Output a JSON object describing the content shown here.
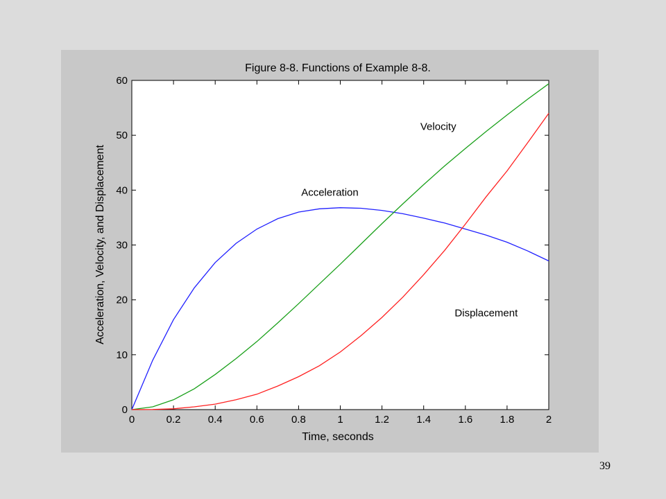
{
  "slide": {
    "number": "39"
  },
  "colors": {
    "acceleration": "#2020ff",
    "velocity": "#1aa01a",
    "displacement": "#ff2020",
    "panel": "#c8c8c8",
    "plot_bg": "#ffffff"
  },
  "chart_data": {
    "type": "line",
    "title": "Figure 8-8. Functions of Example 8-8.",
    "xlabel": "Time, seconds",
    "ylabel": "Acceleration, Velocity, and Displacement",
    "xlim": [
      0,
      2
    ],
    "ylim": [
      0,
      60
    ],
    "xticks": [
      "0",
      "0.2",
      "0.4",
      "0.6",
      "0.8",
      "1",
      "1.2",
      "1.4",
      "1.6",
      "1.8",
      "2"
    ],
    "yticks": [
      "0",
      "10",
      "20",
      "30",
      "40",
      "50",
      "60"
    ],
    "grid": false,
    "x": [
      0,
      0.1,
      0.2,
      0.3,
      0.4,
      0.5,
      0.6,
      0.7,
      0.8,
      0.9,
      1.0,
      1.1,
      1.2,
      1.3,
      1.4,
      1.5,
      1.6,
      1.7,
      1.8,
      1.9,
      2.0
    ],
    "series": [
      {
        "name": "Acceleration",
        "color": "#2020ff",
        "values": [
          0,
          9.0,
          16.4,
          22.2,
          26.8,
          30.3,
          32.9,
          34.8,
          36.0,
          36.6,
          36.8,
          36.7,
          36.3,
          35.7,
          34.9,
          34.0,
          32.9,
          31.8,
          30.5,
          28.9,
          27.1
        ]
      },
      {
        "name": "Velocity",
        "color": "#1aa01a",
        "values": [
          0,
          0.5,
          1.8,
          3.8,
          6.4,
          9.3,
          12.4,
          15.8,
          19.3,
          22.9,
          26.5,
          30.2,
          33.9,
          37.5,
          41.0,
          44.4,
          47.6,
          50.7,
          53.7,
          56.6,
          59.4
        ]
      },
      {
        "name": "Displacement",
        "color": "#ff2020",
        "values": [
          0,
          0.02,
          0.15,
          0.5,
          1.0,
          1.8,
          2.8,
          4.3,
          6.0,
          8.0,
          10.5,
          13.5,
          16.8,
          20.5,
          24.6,
          29.0,
          33.8,
          38.8,
          43.5,
          48.7,
          54.0
        ]
      }
    ],
    "annotations": [
      {
        "text": "Velocity",
        "x": 1.47,
        "y": 51
      },
      {
        "text": "Acceleration",
        "x": 0.95,
        "y": 39
      },
      {
        "text": "Displacement",
        "x": 1.7,
        "y": 17
      }
    ]
  }
}
